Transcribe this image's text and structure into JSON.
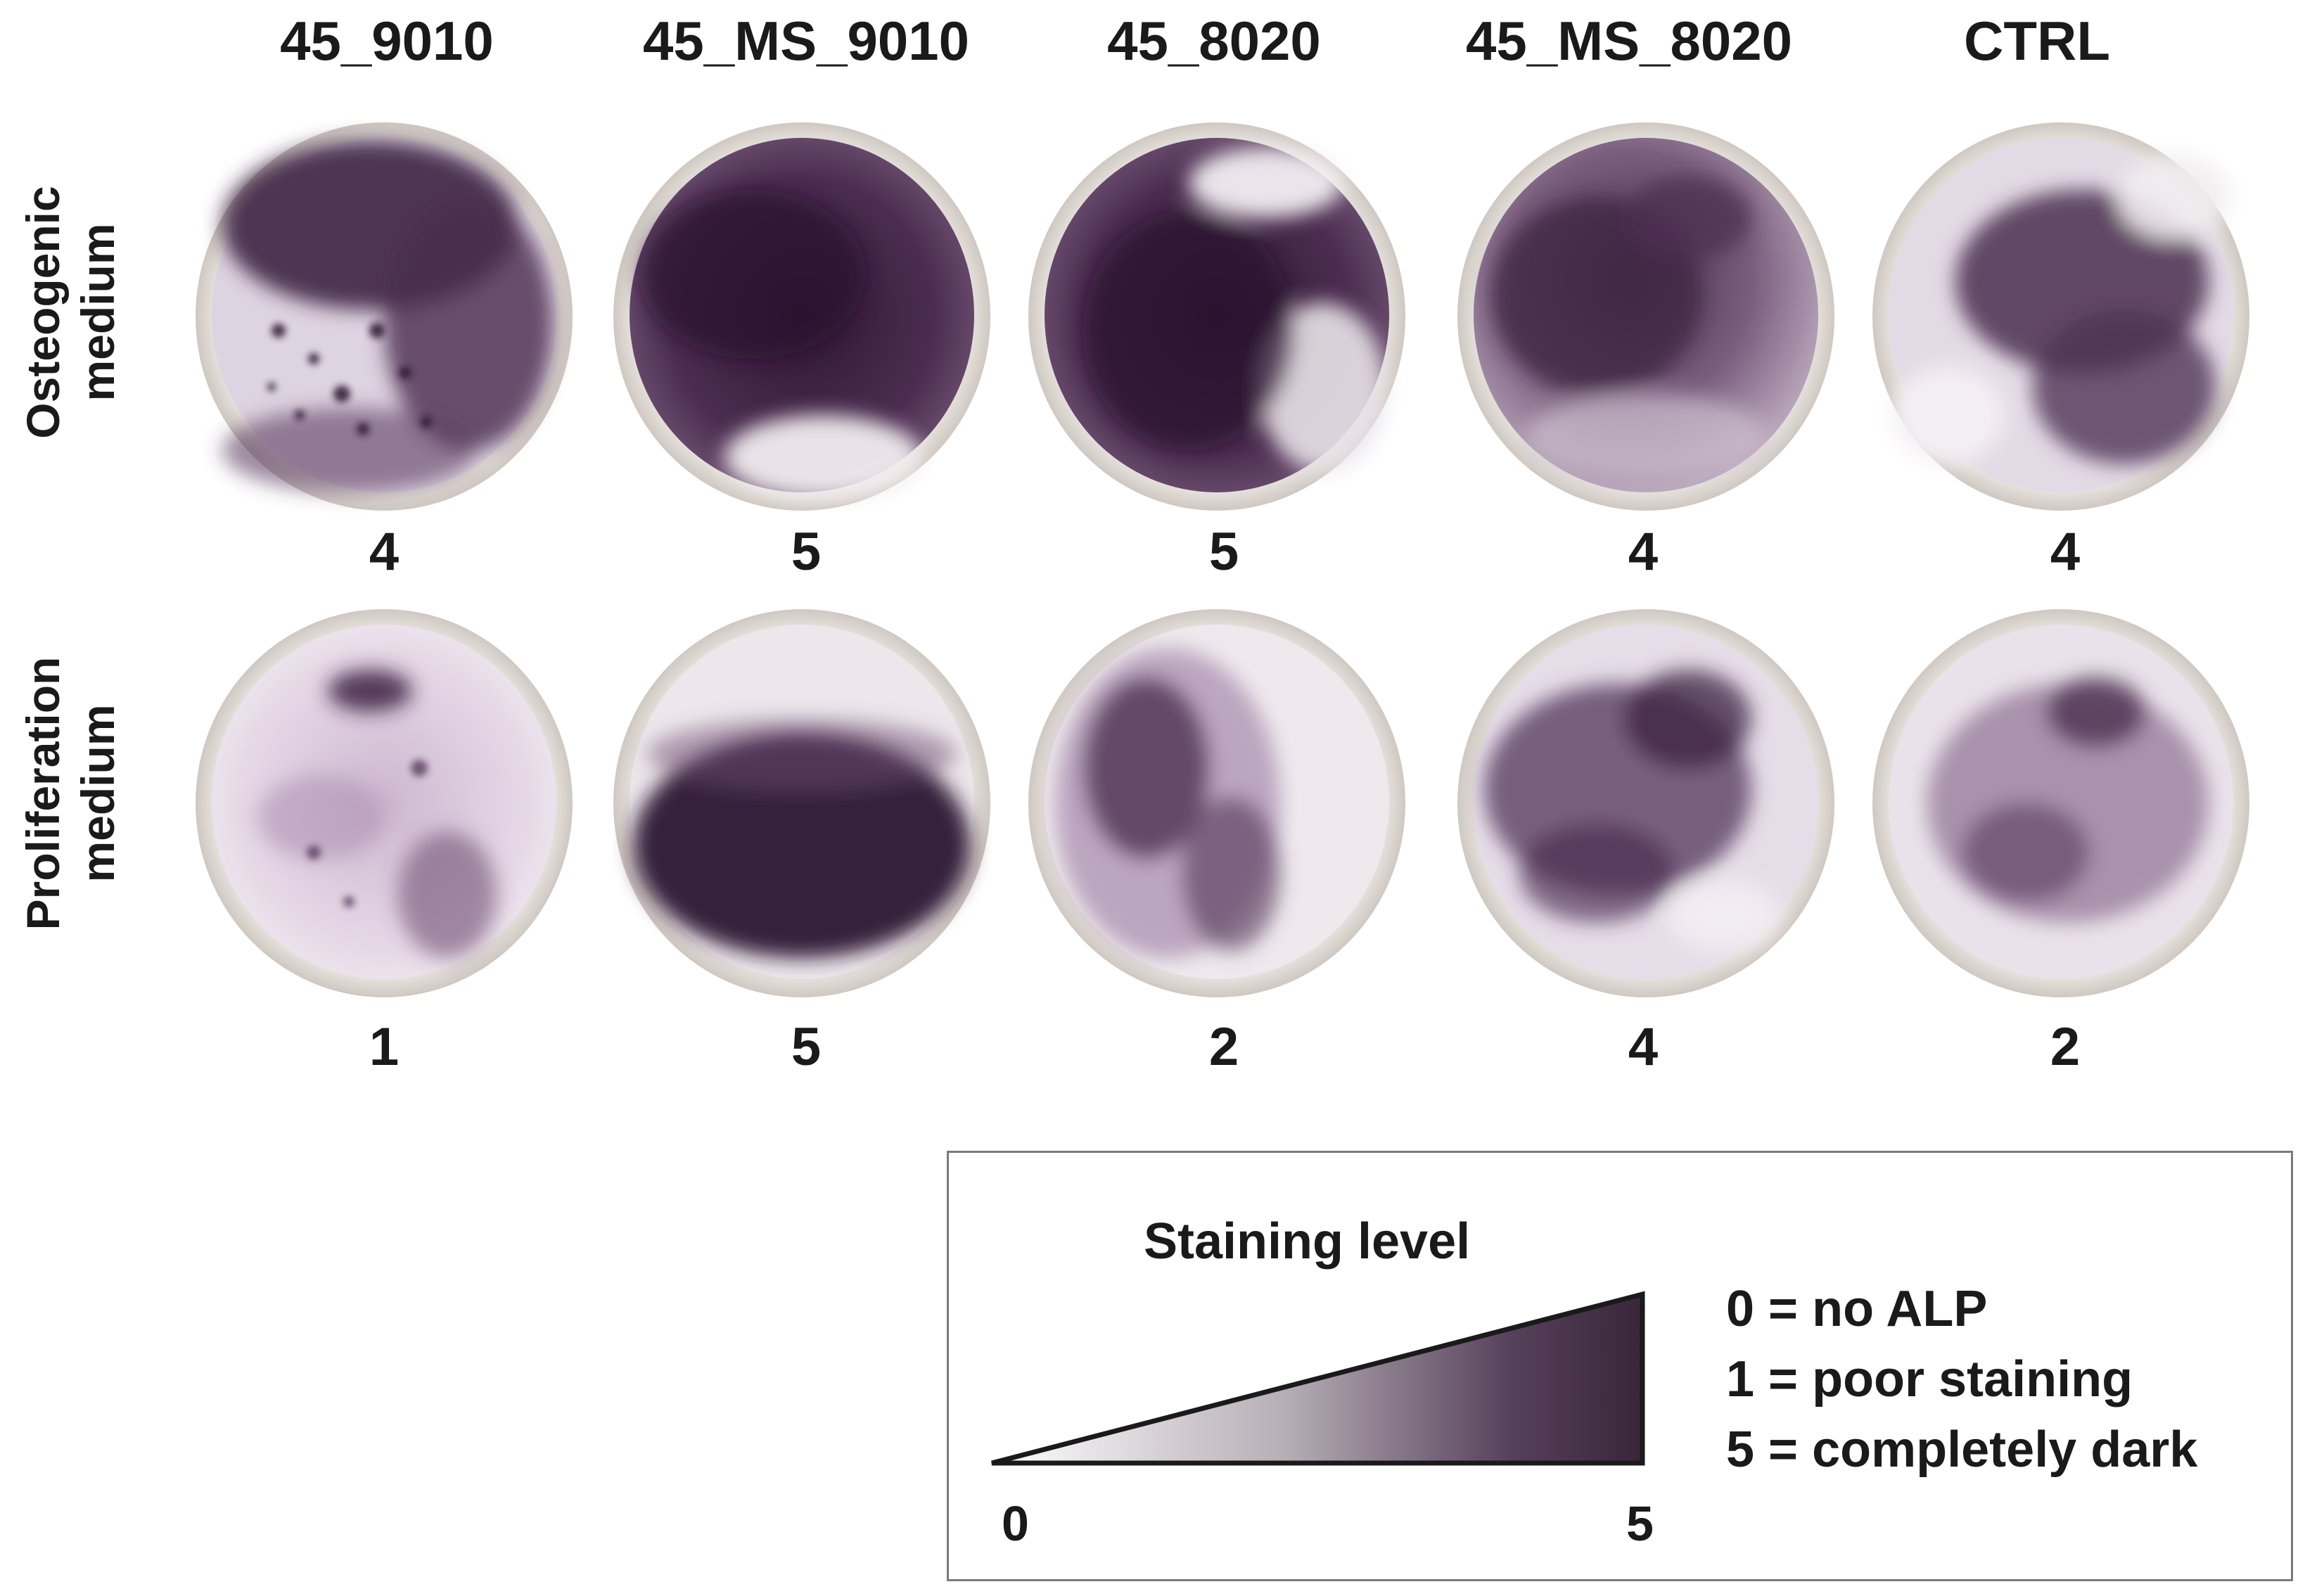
{
  "columns": [
    "45_9010",
    "45_MS_9010",
    "45_8020",
    "45_MS_8020",
    "CTRL"
  ],
  "rows": [
    {
      "label_line1": "Osteogenic",
      "label_line2": "medium",
      "scores": [
        "4",
        "5",
        "5",
        "4",
        "4"
      ]
    },
    {
      "label_line1": "Proliferation",
      "label_line2": "medium",
      "scores": [
        "1",
        "5",
        "2",
        "4",
        "2"
      ]
    }
  ],
  "legend": {
    "title": "Staining level",
    "scale_min": "0",
    "scale_max": "5",
    "items": [
      "0 = no ALP",
      "1 = poor staining",
      "5 = completely dark"
    ]
  },
  "colors": {
    "stain_dark": "#3b1f3e",
    "stain_mid": "#6a4a6e",
    "stain_light": "#e9dcea",
    "dish_rim": "#ddd7d2",
    "wedge_dark": "#3a2639"
  }
}
